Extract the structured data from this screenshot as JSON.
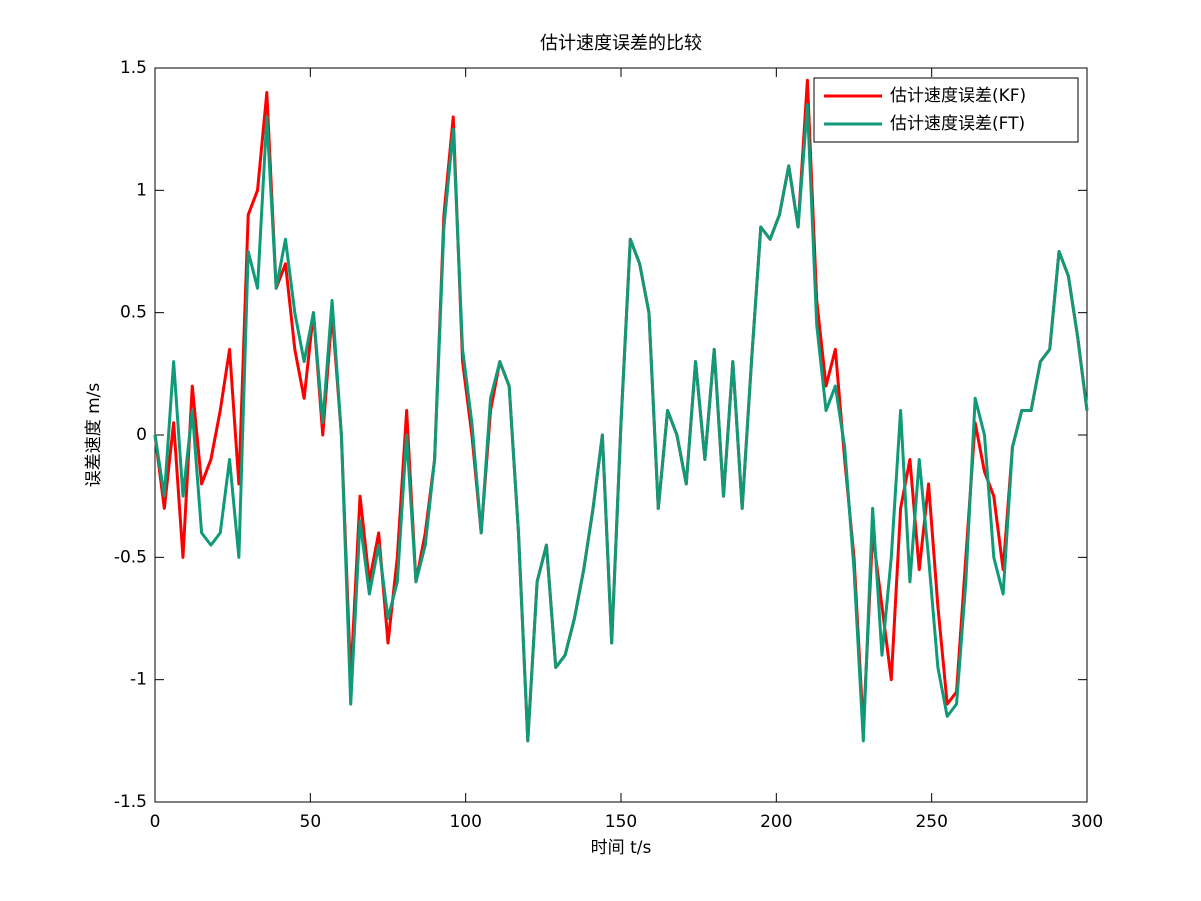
{
  "chart_data": {
    "type": "line",
    "title": "估计速度误差的比较",
    "x_label": "时间 t/s",
    "y_label": "误差速度 m/s",
    "x": [
      0,
      3,
      6,
      9,
      12,
      15,
      18,
      21,
      24,
      27,
      30,
      33,
      36,
      39,
      42,
      45,
      48,
      51,
      54,
      57,
      60,
      63,
      66,
      69,
      72,
      75,
      78,
      81,
      84,
      87,
      90,
      93,
      96,
      99,
      102,
      105,
      108,
      111,
      114,
      117,
      120,
      123,
      126,
      129,
      132,
      135,
      138,
      141,
      144,
      147,
      150,
      153,
      156,
      159,
      162,
      165,
      168,
      171,
      174,
      177,
      180,
      183,
      186,
      189,
      192,
      195,
      198,
      201,
      204,
      207,
      210,
      213,
      216,
      219,
      222,
      225,
      228,
      231,
      234,
      237,
      240,
      243,
      246,
      249,
      252,
      255,
      258,
      261,
      264,
      267,
      270,
      273,
      276,
      279,
      282,
      285,
      288,
      291,
      294,
      297,
      300
    ],
    "series": [
      {
        "name": "估计速度误差(KF)",
        "color": "#ff0000",
        "values": [
          0.0,
          -0.3,
          0.05,
          -0.5,
          0.2,
          -0.2,
          -0.1,
          0.1,
          0.35,
          -0.2,
          0.9,
          1.0,
          1.4,
          0.6,
          0.7,
          0.35,
          0.15,
          0.5,
          0.0,
          0.5,
          0.0,
          -1.0,
          -0.25,
          -0.6,
          -0.4,
          -0.85,
          -0.5,
          0.1,
          -0.6,
          -0.4,
          -0.1,
          0.9,
          1.3,
          0.3,
          0.0,
          -0.4,
          0.1,
          0.3,
          0.2,
          -0.4,
          -1.25,
          -0.6,
          -0.45,
          -0.95,
          -0.9,
          -0.75,
          -0.55,
          -0.3,
          0.0,
          -0.85,
          0.05,
          0.8,
          0.7,
          0.5,
          -0.3,
          0.1,
          0.0,
          -0.2,
          0.3,
          -0.1,
          0.35,
          -0.25,
          0.3,
          -0.3,
          0.3,
          0.85,
          0.8,
          0.9,
          1.1,
          0.85,
          1.45,
          0.55,
          0.2,
          0.35,
          -0.1,
          -0.5,
          -1.2,
          -0.4,
          -0.7,
          -1.0,
          -0.3,
          -0.1,
          -0.55,
          -0.2,
          -0.7,
          -1.1,
          -1.05,
          -0.5,
          0.05,
          -0.15,
          -0.25,
          -0.55,
          -0.05,
          0.1,
          0.1,
          0.3,
          0.35,
          0.75,
          0.65,
          0.4,
          0.1
        ]
      },
      {
        "name": "估计速度误差(FT)",
        "color": "#0f9a78",
        "values": [
          0.0,
          -0.25,
          0.3,
          -0.25,
          0.1,
          -0.4,
          -0.45,
          -0.4,
          -0.1,
          -0.5,
          0.75,
          0.6,
          1.3,
          0.6,
          0.8,
          0.5,
          0.3,
          0.5,
          0.05,
          0.55,
          0.0,
          -1.1,
          -0.35,
          -0.65,
          -0.45,
          -0.75,
          -0.6,
          0.0,
          -0.6,
          -0.45,
          -0.1,
          0.85,
          1.25,
          0.35,
          0.05,
          -0.4,
          0.15,
          0.3,
          0.2,
          -0.4,
          -1.25,
          -0.6,
          -0.45,
          -0.95,
          -0.9,
          -0.75,
          -0.55,
          -0.3,
          0.0,
          -0.85,
          0.05,
          0.8,
          0.7,
          0.5,
          -0.3,
          0.1,
          0.0,
          -0.2,
          0.3,
          -0.1,
          0.35,
          -0.25,
          0.3,
          -0.3,
          0.3,
          0.85,
          0.8,
          0.9,
          1.1,
          0.85,
          1.35,
          0.45,
          0.1,
          0.2,
          -0.05,
          -0.55,
          -1.25,
          -0.3,
          -0.9,
          -0.5,
          0.1,
          -0.6,
          -0.1,
          -0.5,
          -0.95,
          -1.15,
          -1.1,
          -0.6,
          0.15,
          0.0,
          -0.5,
          -0.65,
          -0.05,
          0.1,
          0.1,
          0.3,
          0.35,
          0.75,
          0.65,
          0.4,
          0.1
        ]
      }
    ],
    "xlim": [
      0,
      300
    ],
    "xticks": [
      0,
      50,
      100,
      150,
      200,
      250,
      300
    ],
    "ylim": [
      -1.5,
      1.5
    ],
    "yticks": [
      -1.5,
      -1,
      -0.5,
      0,
      0.5,
      1,
      1.5
    ],
    "grid": false,
    "legend": "upper right"
  }
}
